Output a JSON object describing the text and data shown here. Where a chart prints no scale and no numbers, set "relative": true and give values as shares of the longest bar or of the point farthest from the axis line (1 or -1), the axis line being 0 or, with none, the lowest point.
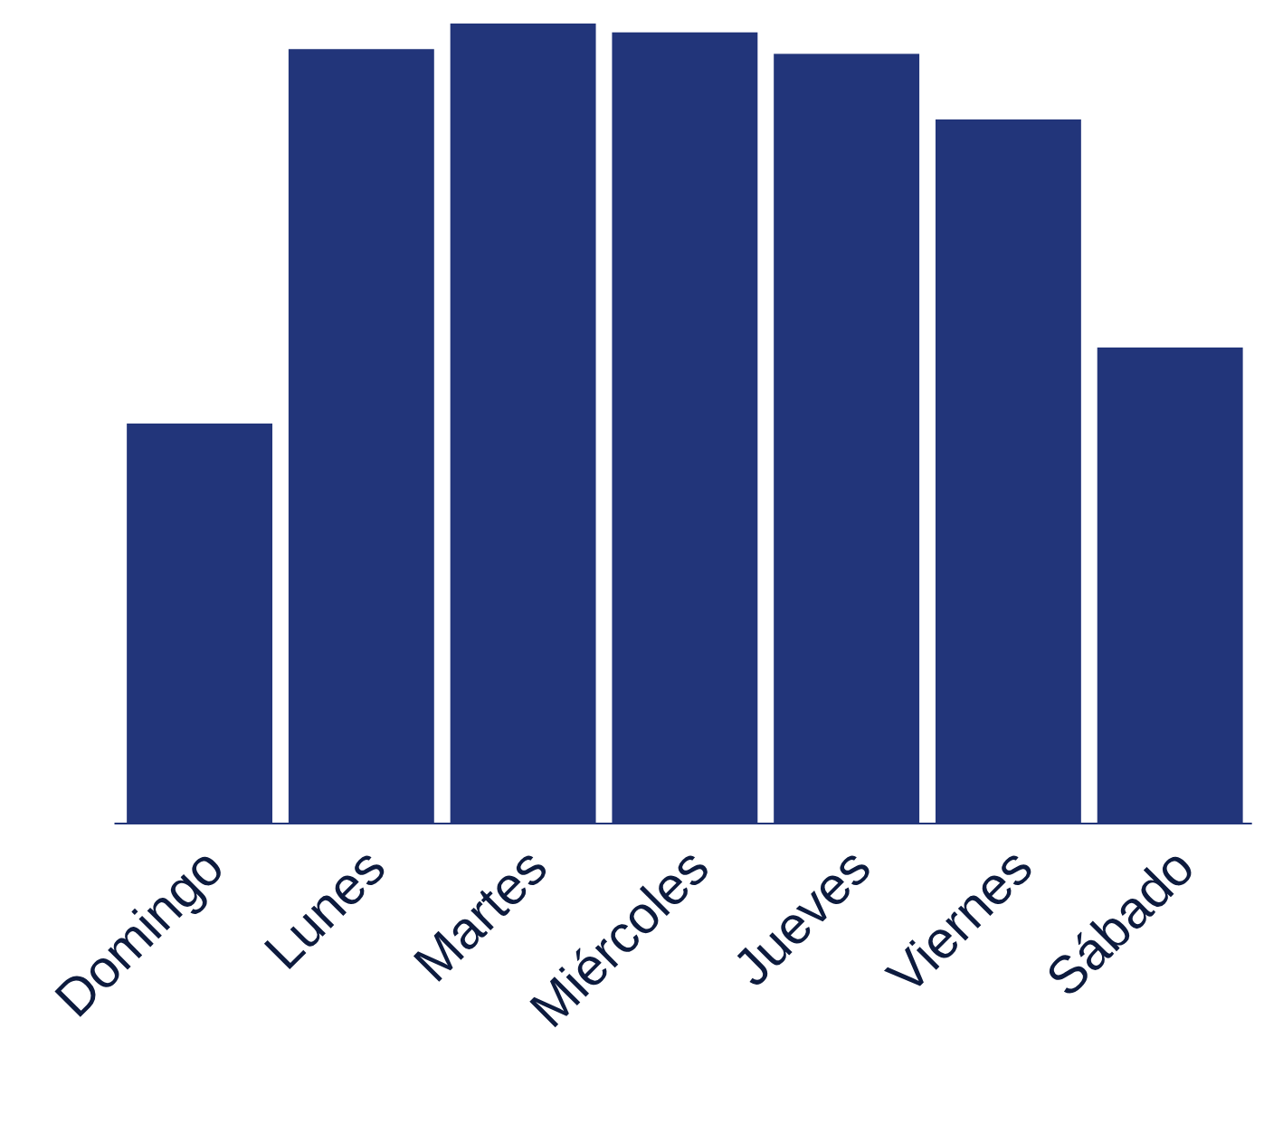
{
  "chart_data": {
    "type": "bar",
    "relative": true,
    "categories": [
      "Domingo",
      "Lunes",
      "Martes",
      "Miércoles",
      "Jueves",
      "Viernes",
      "Sábado"
    ],
    "values": [
      0.5,
      0.968,
      1,
      0.989,
      0.962,
      0.88,
      0.595
    ],
    "color": "#22357a",
    "grid": false
  }
}
